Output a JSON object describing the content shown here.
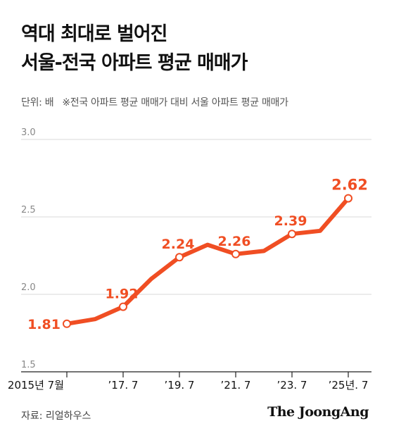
{
  "header": {
    "title_line1": "역대 최대로 벌어진",
    "title_line2": "서울-전국 아파트 평균 매매가",
    "unit": "단위: 배",
    "note": "※전국 아파트 평균 매매가 대비 서울 아파트 평균 매매가"
  },
  "chart_data": {
    "type": "line",
    "title": "역대 최대로 벌어진 서울-전국 아파트 평균 매매가",
    "ylabel": "",
    "xlabel": "",
    "ylim": [
      1.5,
      3.0
    ],
    "yticks": [
      "3.0",
      "2.5",
      "2.0",
      "1.5"
    ],
    "xtick_labels": [
      "2015년 7월",
      "’17. 7",
      "’19. 7",
      "’21. 7",
      "’23. 7",
      "’25년. 7"
    ],
    "grid": true,
    "color": "#f04e23",
    "series": [
      {
        "x": [
          "2015.7",
          "2016.7",
          "2017.7",
          "2018.7",
          "2019.7",
          "2020.7",
          "2021.7",
          "2022.7",
          "2023.7",
          "2024.7",
          "2025.7"
        ],
        "values": [
          1.81,
          1.84,
          1.92,
          2.1,
          2.24,
          2.32,
          2.26,
          2.28,
          2.39,
          2.41,
          2.62
        ]
      }
    ],
    "data_labels": [
      {
        "index": 0,
        "text": "1.81"
      },
      {
        "index": 2,
        "text": "1.92"
      },
      {
        "index": 4,
        "text": "2.24"
      },
      {
        "index": 6,
        "text": "2.26"
      },
      {
        "index": 8,
        "text": "2.39"
      },
      {
        "index": 10,
        "text": "2.62"
      }
    ]
  },
  "footer": {
    "source": "자료: 리얼하우스",
    "brand": "The JoongAng"
  }
}
